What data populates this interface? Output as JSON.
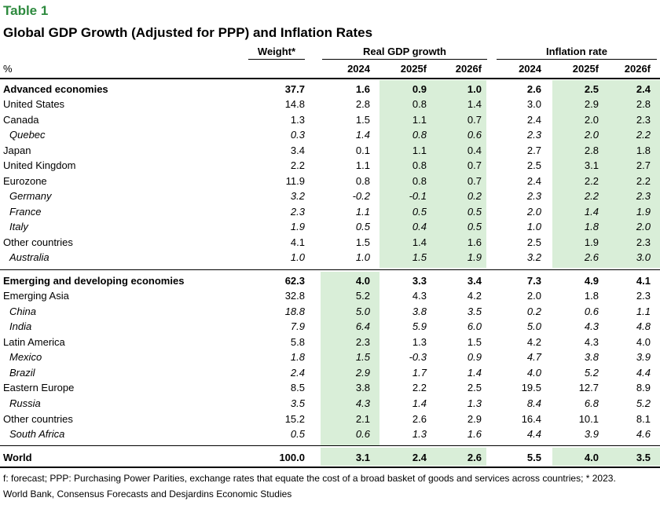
{
  "table_label": "Table 1",
  "title": "Global GDP Growth (Adjusted for PPP) and Inflation Rates",
  "headers": {
    "unit": "%",
    "weight": "Weight*",
    "gdp_group": "Real GDP growth",
    "inflation_group": "Inflation rate",
    "years": [
      "2024",
      "2025f",
      "2026f",
      "2024",
      "2025f",
      "2026f"
    ]
  },
  "rows": [
    {
      "name": "Advanced economies",
      "style": "bold",
      "values": [
        "37.7",
        "1.6",
        "0.9",
        "1.0",
        "2.6",
        "2.5",
        "2.4"
      ]
    },
    {
      "name": "United States",
      "style": "",
      "values": [
        "14.8",
        "2.8",
        "0.8",
        "1.4",
        "3.0",
        "2.9",
        "2.8"
      ]
    },
    {
      "name": "Canada",
      "style": "",
      "values": [
        "1.3",
        "1.5",
        "1.1",
        "0.7",
        "2.4",
        "2.0",
        "2.3"
      ]
    },
    {
      "name": "Quebec",
      "style": "sub",
      "values": [
        "0.3",
        "1.4",
        "0.8",
        "0.6",
        "2.3",
        "2.0",
        "2.2"
      ]
    },
    {
      "name": "Japan",
      "style": "",
      "values": [
        "3.4",
        "0.1",
        "1.1",
        "0.4",
        "2.7",
        "2.8",
        "1.8"
      ]
    },
    {
      "name": "United Kingdom",
      "style": "",
      "values": [
        "2.2",
        "1.1",
        "0.8",
        "0.7",
        "2.5",
        "3.1",
        "2.7"
      ]
    },
    {
      "name": "Eurozone",
      "style": "",
      "values": [
        "11.9",
        "0.8",
        "0.8",
        "0.7",
        "2.4",
        "2.2",
        "2.2"
      ]
    },
    {
      "name": "Germany",
      "style": "sub",
      "values": [
        "3.2",
        "-0.2",
        "-0.1",
        "0.2",
        "2.3",
        "2.2",
        "2.3"
      ]
    },
    {
      "name": "France",
      "style": "sub",
      "values": [
        "2.3",
        "1.1",
        "0.5",
        "0.5",
        "2.0",
        "1.4",
        "1.9"
      ]
    },
    {
      "name": "Italy",
      "style": "sub",
      "values": [
        "1.9",
        "0.5",
        "0.4",
        "0.5",
        "1.0",
        "1.8",
        "2.0"
      ]
    },
    {
      "name": "Other countries",
      "style": "",
      "values": [
        "4.1",
        "1.5",
        "1.4",
        "1.6",
        "2.5",
        "1.9",
        "2.3"
      ]
    },
    {
      "name": "Australia",
      "style": "sub",
      "values": [
        "1.0",
        "1.0",
        "1.5",
        "1.9",
        "3.2",
        "2.6",
        "3.0"
      ]
    },
    {
      "name": "Emerging and developing economies",
      "style": "bold",
      "values": [
        "62.3",
        "4.0",
        "3.3",
        "3.4",
        "7.3",
        "4.9",
        "4.1"
      ]
    },
    {
      "name": "Emerging Asia",
      "style": "",
      "values": [
        "32.8",
        "5.2",
        "4.3",
        "4.2",
        "2.0",
        "1.8",
        "2.3"
      ]
    },
    {
      "name": "China",
      "style": "sub",
      "values": [
        "18.8",
        "5.0",
        "3.8",
        "3.5",
        "0.2",
        "0.6",
        "1.1"
      ]
    },
    {
      "name": "India",
      "style": "sub",
      "values": [
        "7.9",
        "6.4",
        "5.9",
        "6.0",
        "5.0",
        "4.3",
        "4.8"
      ]
    },
    {
      "name": "Latin America",
      "style": "",
      "values": [
        "5.8",
        "2.3",
        "1.3",
        "1.5",
        "4.2",
        "4.3",
        "4.0"
      ]
    },
    {
      "name": "Mexico",
      "style": "sub",
      "values": [
        "1.8",
        "1.5",
        "-0.3",
        "0.9",
        "4.7",
        "3.8",
        "3.9"
      ]
    },
    {
      "name": "Brazil",
      "style": "sub",
      "values": [
        "2.4",
        "2.9",
        "1.7",
        "1.4",
        "4.0",
        "5.2",
        "4.4"
      ]
    },
    {
      "name": "Eastern Europe",
      "style": "",
      "values": [
        "8.5",
        "3.8",
        "2.2",
        "2.5",
        "19.5",
        "12.7",
        "8.9"
      ]
    },
    {
      "name": "Russia",
      "style": "sub",
      "values": [
        "3.5",
        "4.3",
        "1.4",
        "1.3",
        "8.4",
        "6.8",
        "5.2"
      ]
    },
    {
      "name": "Other countries",
      "style": "",
      "values": [
        "15.2",
        "2.1",
        "2.6",
        "2.9",
        "16.4",
        "10.1",
        "8.1"
      ]
    },
    {
      "name": "South Africa",
      "style": "sub",
      "values": [
        "0.5",
        "0.6",
        "1.3",
        "1.6",
        "4.4",
        "3.9",
        "4.6"
      ]
    },
    {
      "name": "World",
      "style": "bold",
      "values": [
        "100.0",
        "3.1",
        "2.4",
        "2.6",
        "5.5",
        "4.0",
        "3.5"
      ]
    }
  ],
  "footnotes": [
    "f: forecast; PPP: Purchasing Power Parities, exchange rates that equate the cost of a broad basket of goods and services across countries; * 2023.",
    "World Bank, Consensus Forecasts and Desjardins Economic Studies"
  ],
  "colors": {
    "label_green": "#2d8a3e",
    "highlight_fill": "#d9eed8"
  }
}
